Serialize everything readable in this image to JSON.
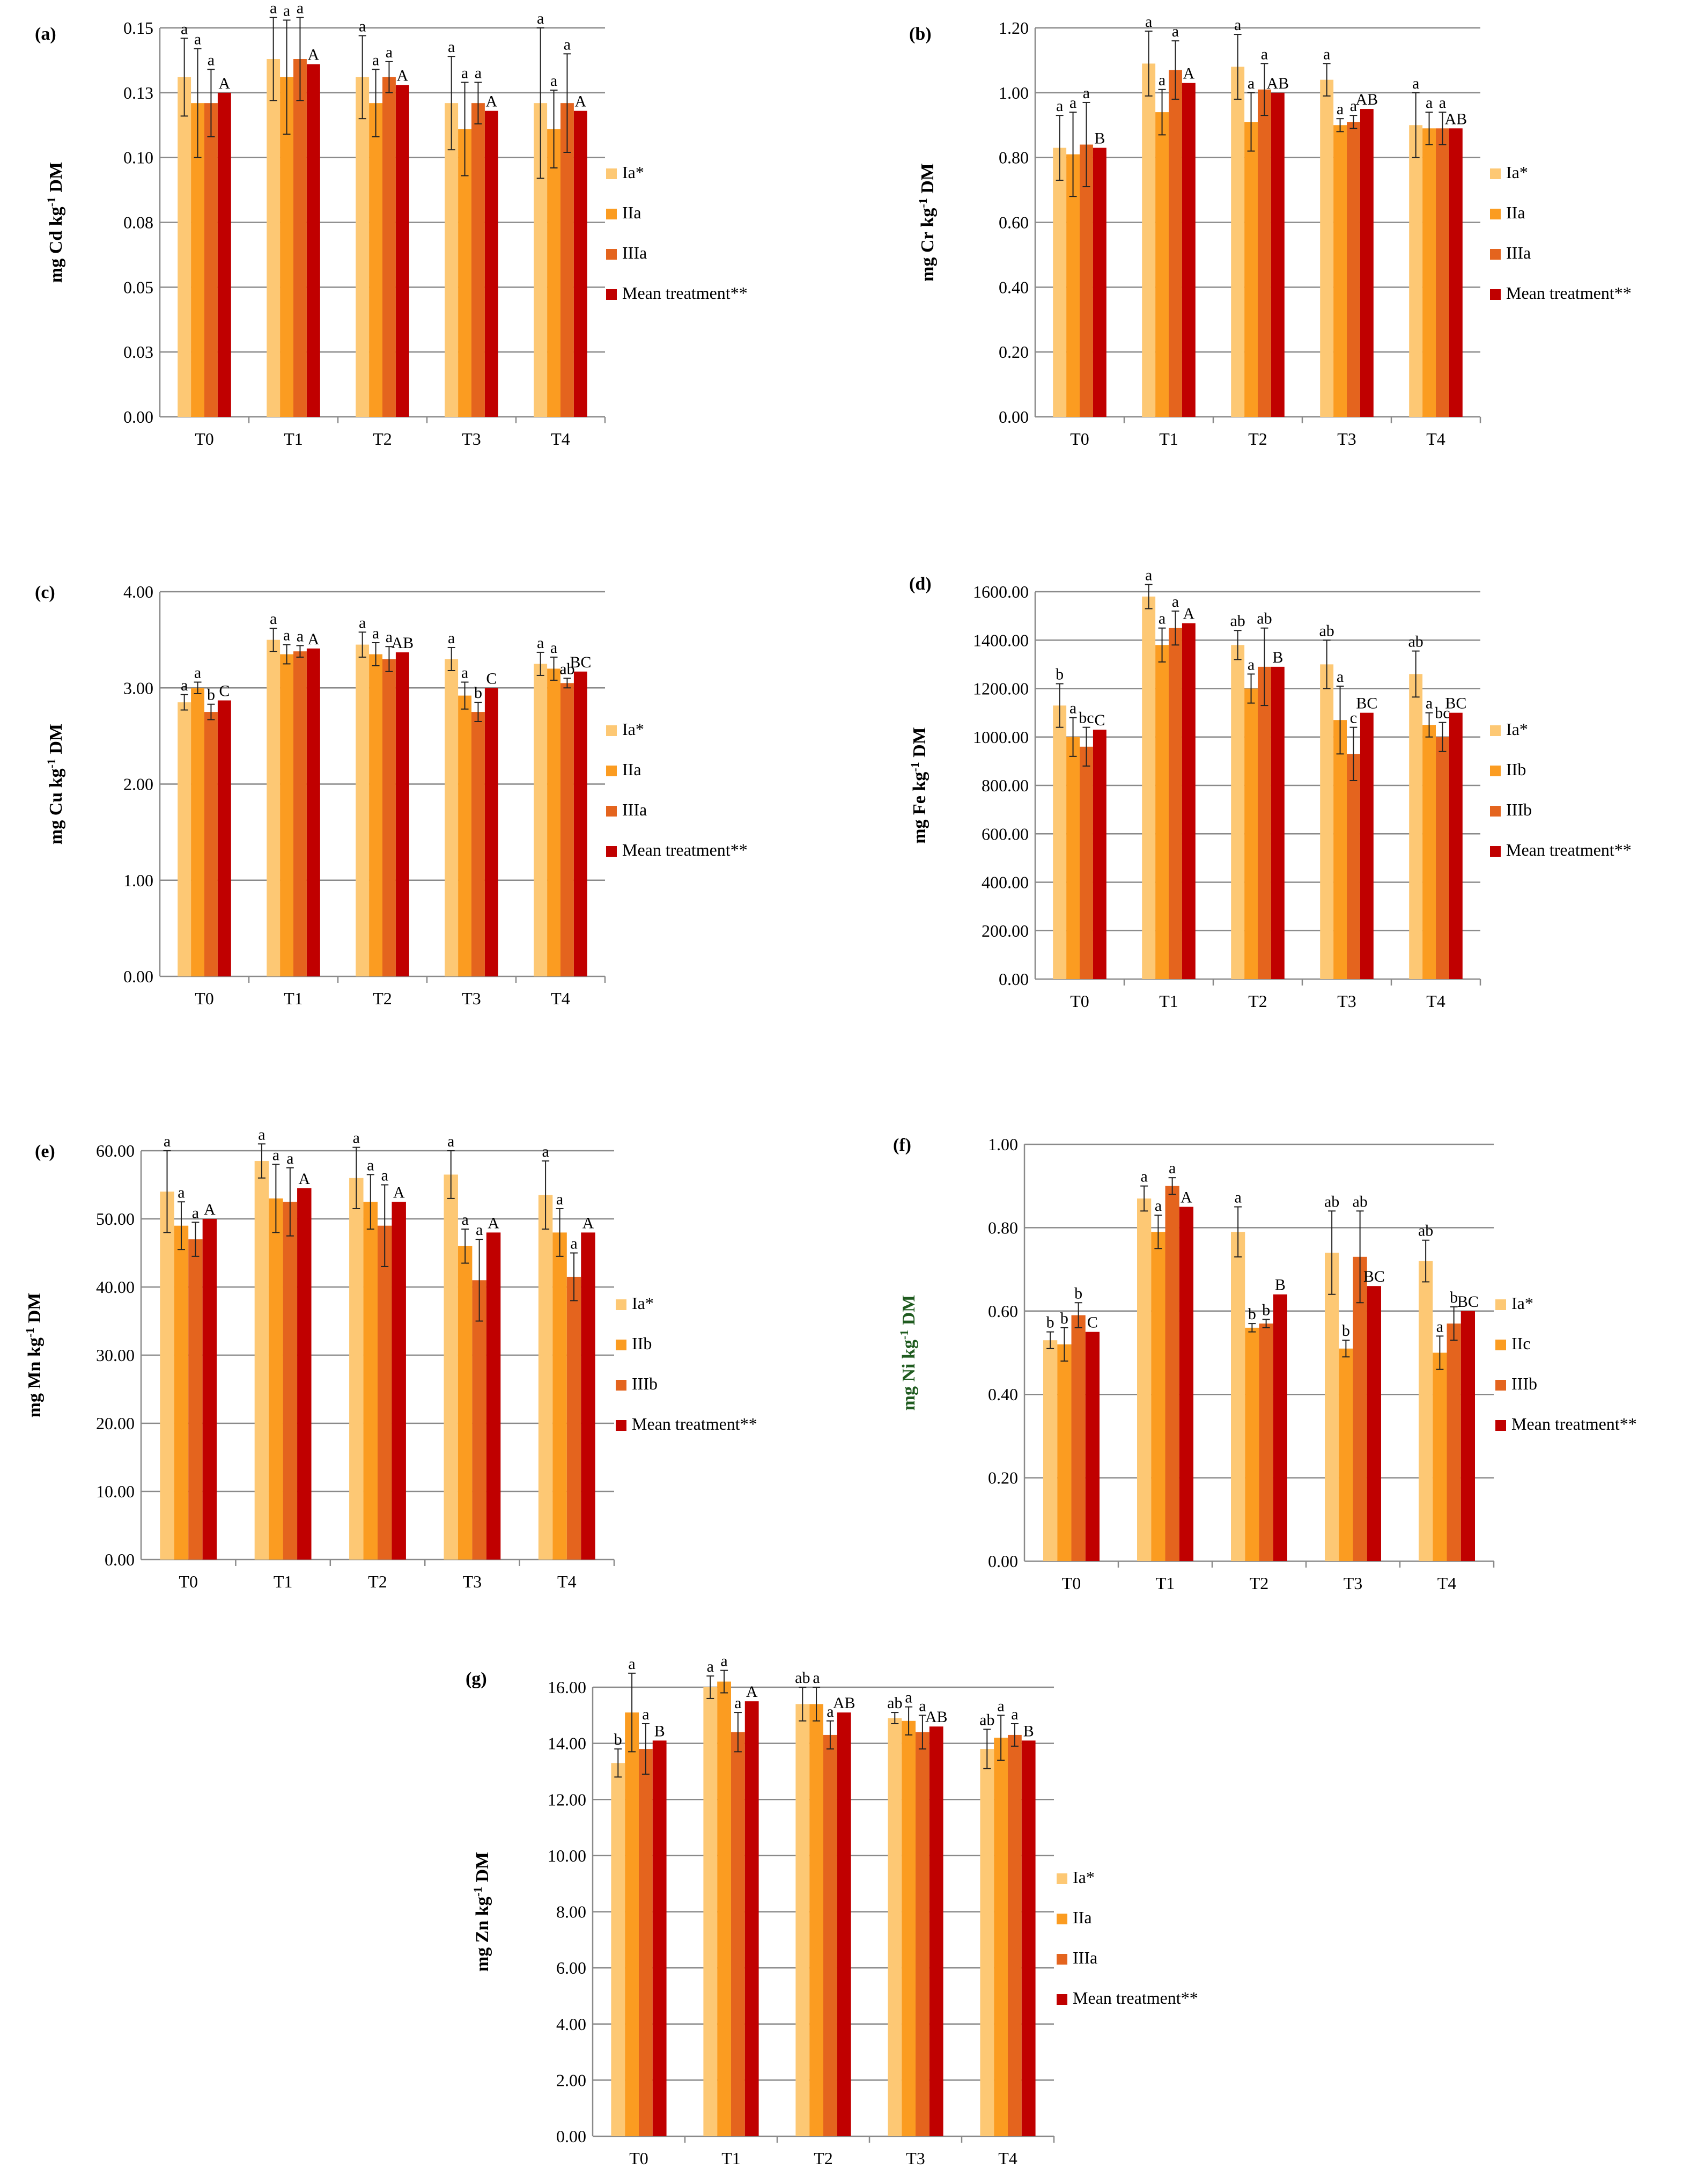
{
  "chart_data": [
    {
      "panel": "(a)",
      "type": "bar",
      "categories": [
        "T0",
        "T1",
        "T2",
        "T3",
        "T4"
      ],
      "ylabel": "mg Cd kg-1 DM",
      "ylabel_main": "mg Cd kg",
      "ylabel_sup": "-1",
      "ylabel_end": " DM",
      "ylim": [
        0,
        0.15
      ],
      "ticks": [
        0,
        0.025,
        0.05,
        0.075,
        0.1,
        0.125,
        0.15
      ],
      "tick_labels": [
        "0.00",
        "0.03",
        "0.05",
        "0.08",
        "0.10",
        "0.13",
        "0.15"
      ],
      "grid": true,
      "legend_position": "right",
      "series": [
        {
          "name": "Ia*",
          "values": [
            0.131,
            0.138,
            0.131,
            0.121,
            0.121
          ],
          "errors": [
            0.015,
            0.016,
            0.016,
            0.018,
            0.029
          ],
          "letters": [
            "a",
            "a",
            "a",
            "a",
            "a"
          ]
        },
        {
          "name": "IIa",
          "values": [
            0.121,
            0.131,
            0.121,
            0.111,
            0.111
          ],
          "errors": [
            0.021,
            0.022,
            0.013,
            0.018,
            0.015
          ],
          "letters": [
            "a",
            "a",
            "a",
            "a",
            "a"
          ]
        },
        {
          "name": "IIIa",
          "values": [
            0.121,
            0.138,
            0.131,
            0.121,
            0.121
          ],
          "errors": [
            0.013,
            0.016,
            0.006,
            0.008,
            0.019
          ],
          "letters": [
            "a",
            "a",
            "a",
            "a",
            "a"
          ]
        },
        {
          "name": "Mean treatment**",
          "values": [
            0.125,
            0.136,
            0.128,
            0.118,
            0.118
          ],
          "errors": null,
          "letters": [
            "A",
            "A",
            "A",
            "A",
            "A"
          ]
        }
      ]
    },
    {
      "panel": "(b)",
      "type": "bar",
      "categories": [
        "T0",
        "T1",
        "T2",
        "T3",
        "T4"
      ],
      "ylabel": "mg Cr kg-1 DM",
      "ylabel_main": "mg Cr kg",
      "ylabel_sup": "-1",
      "ylabel_end": " DM",
      "ylim": [
        0,
        1.2
      ],
      "ticks": [
        0,
        0.2,
        0.4,
        0.6,
        0.8,
        1.0,
        1.2
      ],
      "tick_labels": [
        "0.00",
        "0.20",
        "0.40",
        "0.60",
        "0.80",
        "1.00",
        "1.20"
      ],
      "grid": true,
      "legend_position": "right",
      "series": [
        {
          "name": "Ia*",
          "values": [
            0.83,
            1.09,
            1.08,
            1.04,
            0.9
          ],
          "errors": [
            0.1,
            0.1,
            0.1,
            0.05,
            0.1
          ],
          "letters": [
            "a",
            "a",
            "a",
            "a",
            "a"
          ]
        },
        {
          "name": "IIa",
          "values": [
            0.81,
            0.94,
            0.91,
            0.9,
            0.89
          ],
          "errors": [
            0.13,
            0.07,
            0.09,
            0.02,
            0.05
          ],
          "letters": [
            "a",
            "a",
            "a",
            "a",
            "a"
          ]
        },
        {
          "name": "IIIa",
          "values": [
            0.84,
            1.07,
            1.01,
            0.91,
            0.89
          ],
          "errors": [
            0.13,
            0.09,
            0.08,
            0.02,
            0.05
          ],
          "letters": [
            "a",
            "a",
            "a",
            "a",
            "a"
          ]
        },
        {
          "name": "Mean treatment**",
          "values": [
            0.83,
            1.03,
            1.0,
            0.95,
            0.89
          ],
          "errors": null,
          "letters": [
            "B",
            "A",
            "AB",
            "AB",
            "AB"
          ]
        }
      ]
    },
    {
      "panel": "(c)",
      "type": "bar",
      "categories": [
        "T0",
        "T1",
        "T2",
        "T3",
        "T4"
      ],
      "ylabel": "mg Cu kg-1 DM",
      "ylabel_main": "mg Cu kg",
      "ylabel_sup": "-1",
      "ylabel_end": " DM",
      "ylim": [
        0,
        4
      ],
      "ticks": [
        0,
        1,
        2,
        3,
        4
      ],
      "tick_labels": [
        "0.00",
        "1.00",
        "2.00",
        "3.00",
        "4.00"
      ],
      "grid": true,
      "legend_position": "right",
      "series": [
        {
          "name": "Ia*",
          "values": [
            2.85,
            3.5,
            3.45,
            3.3,
            3.25
          ],
          "errors": [
            0.08,
            0.12,
            0.13,
            0.12,
            0.12
          ],
          "letters": [
            "a",
            "a",
            "a",
            "a",
            "a"
          ]
        },
        {
          "name": "IIa",
          "values": [
            3.0,
            3.35,
            3.35,
            2.92,
            3.2
          ],
          "errors": [
            0.06,
            0.1,
            0.12,
            0.14,
            0.12
          ],
          "letters": [
            "a",
            "a",
            "a",
            "a",
            "a"
          ]
        },
        {
          "name": "IIIa",
          "values": [
            2.75,
            3.38,
            3.3,
            2.75,
            3.05
          ],
          "errors": [
            0.08,
            0.06,
            0.13,
            0.1,
            0.05
          ],
          "letters": [
            "b",
            "a",
            "a",
            "b",
            "ab"
          ]
        },
        {
          "name": "Mean treatment**",
          "values": [
            2.87,
            3.41,
            3.37,
            3.0,
            3.17
          ],
          "errors": null,
          "letters": [
            "C",
            "A",
            "AB",
            "C",
            "BC"
          ]
        }
      ]
    },
    {
      "panel": "(d)",
      "type": "bar",
      "categories": [
        "T0",
        "T1",
        "T2",
        "T3",
        "T4"
      ],
      "ylabel": "mg Fe kg-1 DM",
      "ylabel_main": "mg Fe kg",
      "ylabel_sup": "-1",
      "ylabel_end": " DM",
      "ylim": [
        0,
        1600
      ],
      "ticks": [
        0,
        200,
        400,
        600,
        800,
        1000,
        1200,
        1400,
        1600
      ],
      "tick_labels": [
        "0.00",
        "200.00",
        "400.00",
        "600.00",
        "800.00",
        "1000.00",
        "1200.00",
        "1400.00",
        "1600.00"
      ],
      "grid": true,
      "legend_position": "right",
      "series": [
        {
          "name": "Ia*",
          "values": [
            1130,
            1580,
            1380,
            1300,
            1260
          ],
          "errors": [
            90,
            50,
            60,
            100,
            95
          ],
          "letters": [
            "b",
            "a",
            "ab",
            "ab",
            "ab"
          ]
        },
        {
          "name": "IIb",
          "values": [
            1000,
            1380,
            1200,
            1070,
            1050
          ],
          "errors": [
            80,
            70,
            60,
            140,
            50
          ],
          "letters": [
            "a",
            "a",
            "a",
            "a",
            "a"
          ]
        },
        {
          "name": "IIIb",
          "values": [
            960,
            1450,
            1290,
            930,
            1000
          ],
          "errors": [
            80,
            70,
            160,
            110,
            60
          ],
          "letters": [
            "bc",
            "a",
            "ab",
            "c",
            "bc"
          ]
        },
        {
          "name": "Mean treatment**",
          "values": [
            1030,
            1470,
            1290,
            1100,
            1100
          ],
          "errors": null,
          "letters": [
            "C",
            "A",
            "B",
            "BC",
            "BC"
          ]
        }
      ]
    },
    {
      "panel": "(e)",
      "type": "bar",
      "categories": [
        "T0",
        "T1",
        "T2",
        "T3",
        "T4"
      ],
      "ylabel": "mg Mn kg-1 DM",
      "ylabel_main": "mg Mn kg",
      "ylabel_sup": "-1",
      "ylabel_end": " DM",
      "ylim": [
        0,
        60
      ],
      "ticks": [
        0,
        10,
        20,
        30,
        40,
        50,
        60
      ],
      "tick_labels": [
        "0.00",
        "10.00",
        "20.00",
        "30.00",
        "40.00",
        "50.00",
        "60.00"
      ],
      "grid": true,
      "legend_position": "right",
      "series": [
        {
          "name": "Ia*",
          "values": [
            54.0,
            58.5,
            56.0,
            56.5,
            53.5
          ],
          "errors": [
            6.0,
            2.5,
            4.5,
            3.5,
            5.0
          ],
          "letters": [
            "a",
            "a",
            "a",
            "a",
            "a"
          ]
        },
        {
          "name": "IIb",
          "values": [
            49.0,
            53.0,
            52.5,
            46.0,
            48.0
          ],
          "errors": [
            3.5,
            5.0,
            4.0,
            2.5,
            3.5
          ],
          "letters": [
            "a",
            "a",
            "a",
            "a",
            "a"
          ]
        },
        {
          "name": "IIIb",
          "values": [
            47.0,
            52.5,
            49.0,
            41.0,
            41.5
          ],
          "errors": [
            2.5,
            5.0,
            6.0,
            6.0,
            3.5
          ],
          "letters": [
            "a",
            "a",
            "a",
            "a",
            "a"
          ]
        },
        {
          "name": "Mean treatment**",
          "values": [
            50.0,
            54.5,
            52.5,
            48.0,
            48.0
          ],
          "errors": null,
          "letters": [
            "A",
            "A",
            "A",
            "A",
            "A"
          ]
        }
      ]
    },
    {
      "panel": "(f)",
      "type": "bar",
      "categories": [
        "T0",
        "T1",
        "T2",
        "T3",
        "T4"
      ],
      "ylabel": "mg Ni kg-1 DM",
      "ylabel_main": "mg Ni kg",
      "ylabel_sup": "-1",
      "ylabel_end": " DM",
      "ylabel_color": "#1f5b1f",
      "ylim": [
        0,
        1.0
      ],
      "ticks": [
        0,
        0.2,
        0.4,
        0.6,
        0.8,
        1.0
      ],
      "tick_labels": [
        "0.00",
        "0.20",
        "0.40",
        "0.60",
        "0.80",
        "1.00"
      ],
      "grid": true,
      "legend_position": "right",
      "series": [
        {
          "name": "Ia*",
          "values": [
            0.53,
            0.87,
            0.79,
            0.74,
            0.72
          ],
          "errors": [
            0.02,
            0.03,
            0.06,
            0.1,
            0.05
          ],
          "letters": [
            "b",
            "a",
            "a",
            "ab",
            "ab"
          ]
        },
        {
          "name": "IIc",
          "values": [
            0.52,
            0.79,
            0.56,
            0.51,
            0.5
          ],
          "errors": [
            0.04,
            0.04,
            0.01,
            0.02,
            0.04
          ],
          "letters": [
            "b",
            "a",
            "b",
            "b",
            "a"
          ]
        },
        {
          "name": "IIIb",
          "values": [
            0.59,
            0.9,
            0.57,
            0.73,
            0.57
          ],
          "errors": [
            0.03,
            0.02,
            0.01,
            0.11,
            0.04
          ],
          "letters": [
            "b",
            "a",
            "b",
            "ab",
            "b"
          ]
        },
        {
          "name": "Mean treatment**",
          "values": [
            0.55,
            0.85,
            0.64,
            0.66,
            0.6
          ],
          "errors": null,
          "letters": [
            "C",
            "A",
            "B",
            "BC",
            "BC"
          ]
        }
      ]
    },
    {
      "panel": "(g)",
      "type": "bar",
      "categories": [
        "T0",
        "T1",
        "T2",
        "T3",
        "T4"
      ],
      "ylabel": "mg Zn kg-1 DM",
      "ylabel_main": "mg Zn kg",
      "ylabel_sup": "-1",
      "ylabel_end": " DM",
      "ylim": [
        0,
        16
      ],
      "ticks": [
        0,
        2,
        4,
        6,
        8,
        10,
        12,
        14,
        16
      ],
      "tick_labels": [
        "0.00",
        "2.00",
        "4.00",
        "6.00",
        "8.00",
        "10.00",
        "12.00",
        "14.00",
        "16.00"
      ],
      "grid": true,
      "legend_position": "right",
      "series": [
        {
          "name": "Ia*",
          "values": [
            13.3,
            16.0,
            15.4,
            14.9,
            13.8
          ],
          "errors": [
            0.5,
            0.4,
            0.6,
            0.2,
            0.7
          ],
          "letters": [
            "b",
            "a",
            "ab",
            "ab",
            "ab"
          ]
        },
        {
          "name": "IIa",
          "values": [
            15.1,
            16.2,
            15.4,
            14.8,
            14.2
          ],
          "errors": [
            1.4,
            0.4,
            0.6,
            0.5,
            0.8
          ],
          "letters": [
            "a",
            "a",
            "a",
            "a",
            "a"
          ]
        },
        {
          "name": "IIIa",
          "values": [
            13.8,
            14.4,
            14.3,
            14.4,
            14.3
          ],
          "errors": [
            0.9,
            0.7,
            0.5,
            0.6,
            0.4
          ],
          "letters": [
            "a",
            "a",
            "a",
            "a",
            "a"
          ]
        },
        {
          "name": "Mean treatment**",
          "values": [
            14.1,
            15.5,
            15.1,
            14.6,
            14.1
          ],
          "errors": null,
          "letters": [
            "B",
            "A",
            "AB",
            "AB",
            "B"
          ]
        }
      ]
    }
  ],
  "colors": {
    "series": [
      "#fdc874",
      "#fb9c21",
      "#e4641e",
      "#c00000"
    ],
    "grid": "#8a8a8a",
    "axis": "#8a8a8a",
    "error_bar": "#222222",
    "text": "#000000"
  }
}
